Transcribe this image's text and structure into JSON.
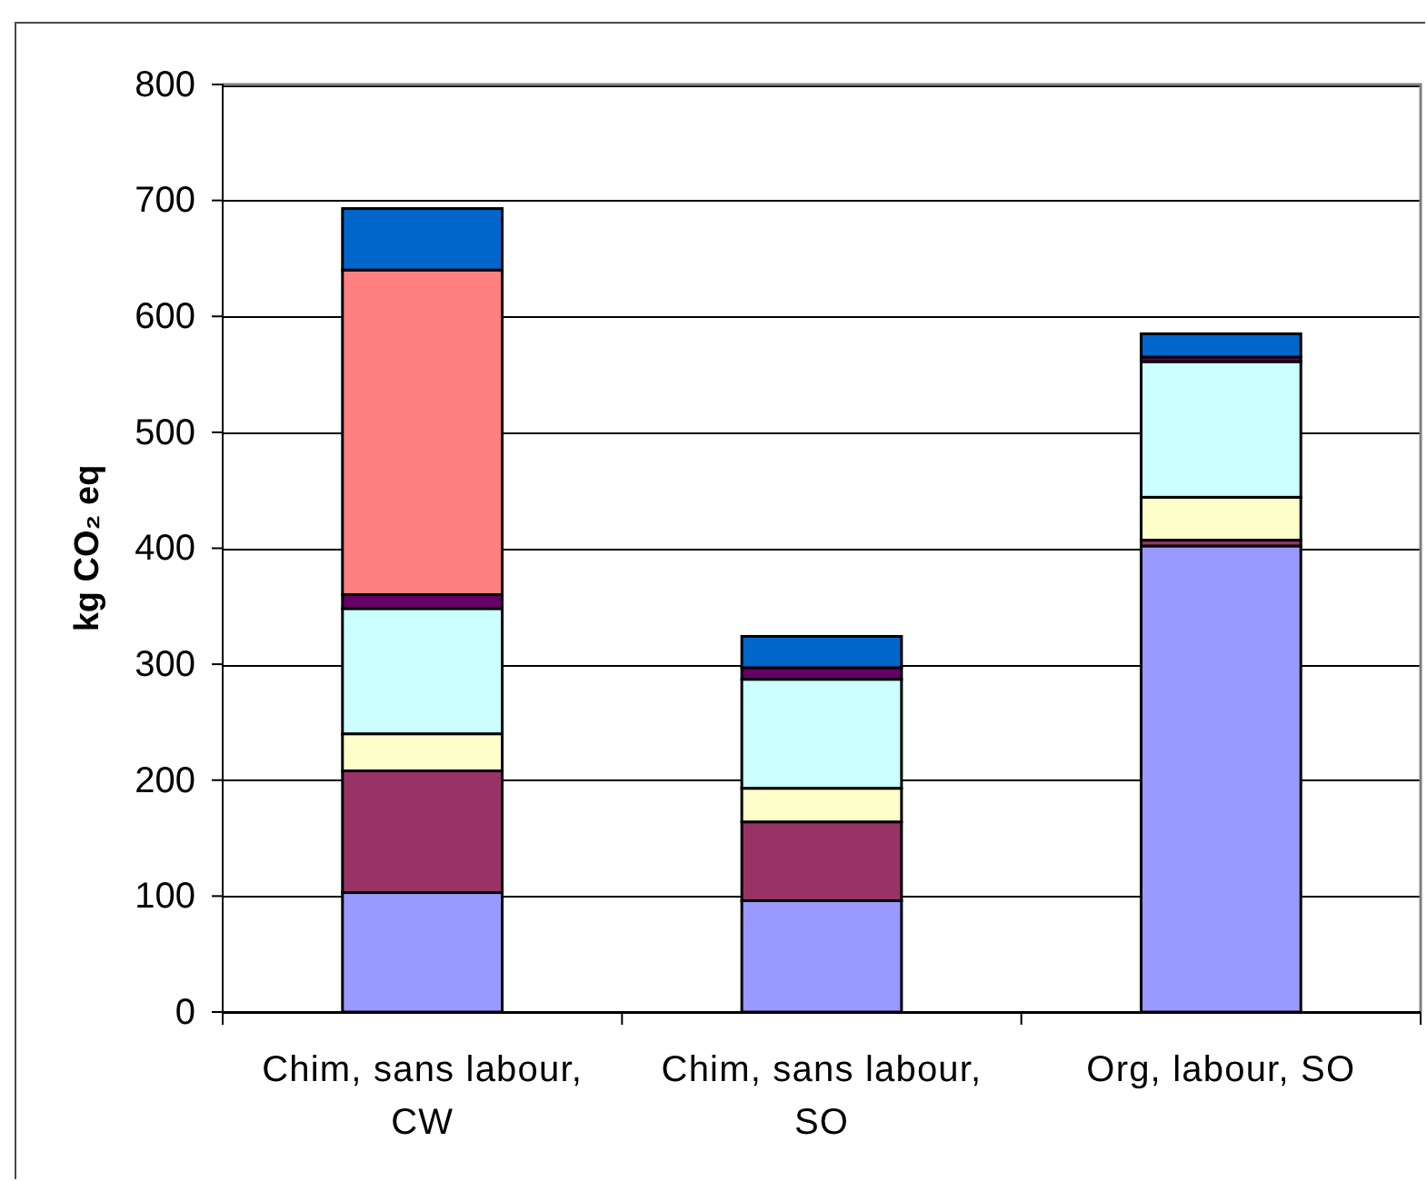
{
  "chart_data": {
    "type": "bar",
    "stacked": true,
    "ylabel": "kg CO₂ eq",
    "categories": [
      "Chim, sans labour, CW",
      "Chim, sans labour, SO",
      "Org, labour, SO"
    ],
    "series": [
      {
        "color": "#9999ff",
        "values": [
          103,
          96,
          402
        ]
      },
      {
        "color": "#993366",
        "values": [
          105,
          68,
          5
        ]
      },
      {
        "color": "#ffffcc",
        "values": [
          32,
          29,
          37
        ]
      },
      {
        "color": "#ccffff",
        "values": [
          108,
          94,
          117
        ]
      },
      {
        "color": "#660066",
        "values": [
          12,
          10,
          4
        ]
      },
      {
        "color": "#ff8080",
        "values": [
          280,
          null,
          null
        ]
      },
      {
        "color": "#0066cc",
        "values": [
          53,
          27,
          20
        ]
      }
    ],
    "ylim": [
      0,
      800
    ],
    "yticks": [
      0,
      100,
      200,
      300,
      400,
      500,
      600,
      700,
      800
    ],
    "grid": "y"
  }
}
